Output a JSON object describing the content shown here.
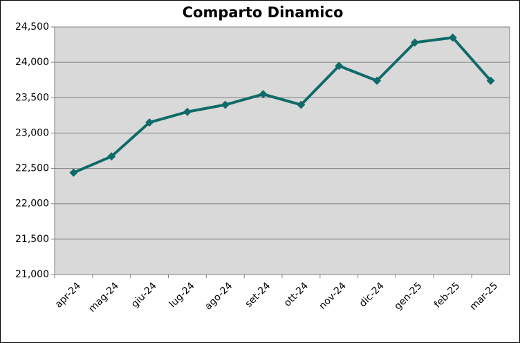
{
  "chart_data": {
    "type": "line",
    "title": "Comparto Dinamico",
    "categories": [
      "apr-24",
      "mag-24",
      "giu-24",
      "lug-24",
      "ago-24",
      "set-24",
      "ott-24",
      "nov-24",
      "dic-24",
      "gen-25",
      "feb-25",
      "mar-25"
    ],
    "series": [
      {
        "name": "Comparto Dinamico",
        "color": "#0f6b68",
        "values": [
          22440,
          22670,
          23150,
          23300,
          23400,
          23550,
          23400,
          23950,
          23740,
          24280,
          24350,
          23740
        ]
      }
    ],
    "ylim": [
      21000,
      24500
    ],
    "yticks": [
      {
        "value": 21000,
        "label": "21,000"
      },
      {
        "value": 21500,
        "label": "21,500"
      },
      {
        "value": 22000,
        "label": "22,000"
      },
      {
        "value": 22500,
        "label": "22,500"
      },
      {
        "value": 23000,
        "label": "23,000"
      },
      {
        "value": 23500,
        "label": "23,500"
      },
      {
        "value": 24000,
        "label": "24,000"
      },
      {
        "value": 24500,
        "label": "24,500"
      }
    ],
    "grid": true
  }
}
